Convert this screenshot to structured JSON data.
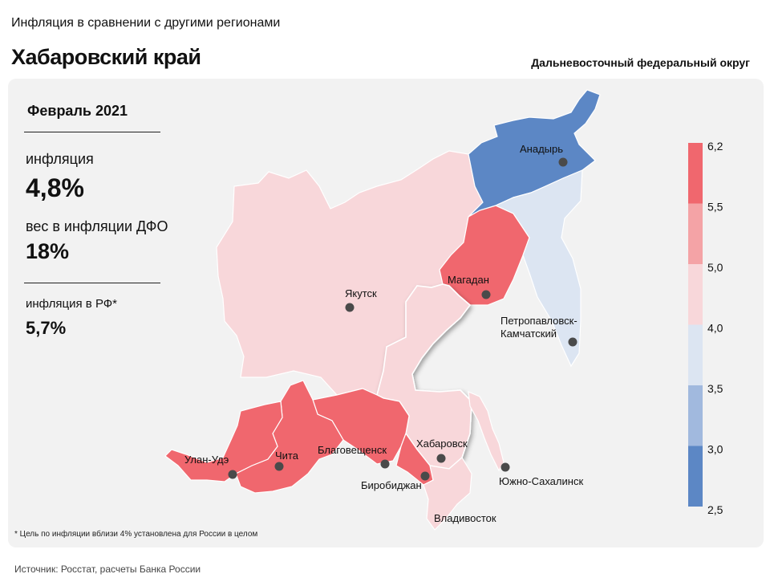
{
  "header": {
    "subtitle": "Инфляция в сравнении с другими регионами",
    "title": "Хабаровский край",
    "district": "Дальневосточный федеральный округ"
  },
  "stats": {
    "period": "Февраль 2021",
    "inflation_label": "инфляция",
    "inflation_value": "4,8%",
    "weight_label": "вес в инфляции  ДФО",
    "weight_value": "18%",
    "rf_label": "инфляция  в РФ*",
    "rf_value": "5,7%"
  },
  "footnote": "* Цель по инфляции вблизи 4% установлена для России в целом",
  "source": "Источник: Росстат, расчеты Банка России",
  "legend": {
    "ticks": [
      "6,2",
      "5,5",
      "5,0",
      "4,0",
      "3,5",
      "3,0",
      "2,5"
    ],
    "colors": [
      "#f0676e",
      "#f4a3a6",
      "#f8d7da",
      "#dce5f2",
      "#a1b9de",
      "#5c87c5"
    ]
  },
  "map": {
    "colors": {
      "high": "#f0676e",
      "mid": "#f8d7da",
      "low_light": "#dce5f2",
      "low": "#5c87c5"
    },
    "cities": [
      {
        "name": "Анадырь",
        "key": "anadyr"
      },
      {
        "name": "Магадан",
        "key": "magadan"
      },
      {
        "name": "Якутск",
        "key": "yakutsk"
      },
      {
        "name": "Петропавловск-",
        "key": "petro1"
      },
      {
        "name": "Камчатский",
        "key": "petro2"
      },
      {
        "name": "Улан-Удэ",
        "key": "ulanude"
      },
      {
        "name": "Чита",
        "key": "chita"
      },
      {
        "name": "Благовещенск",
        "key": "blag"
      },
      {
        "name": "Хабаровск",
        "key": "khab"
      },
      {
        "name": "Биробиджан",
        "key": "birob"
      },
      {
        "name": "Южно-Сахалинск",
        "key": "sakh"
      },
      {
        "name": "Владивосток",
        "key": "vlad"
      }
    ]
  }
}
